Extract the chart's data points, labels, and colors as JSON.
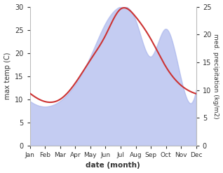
{
  "months": [
    "Jan",
    "Feb",
    "Mar",
    "Apr",
    "May",
    "Jun",
    "Jul",
    "Aug",
    "Sep",
    "Oct",
    "Nov",
    "Dec"
  ],
  "month_positions": [
    0,
    1,
    2,
    3,
    4,
    5,
    6,
    7,
    8,
    9,
    10,
    11
  ],
  "temp_max": [
    11.3,
    9.5,
    10.0,
    13.5,
    18.5,
    23.8,
    29.5,
    27.8,
    23.0,
    17.0,
    13.0,
    11.2
  ],
  "precip": [
    8.0,
    7.0,
    8.0,
    11.0,
    16.0,
    22.0,
    25.0,
    22.5,
    16.0,
    21.0,
    12.0,
    10.0
  ],
  "temp_ylim": [
    0,
    30
  ],
  "precip_ylim": [
    0,
    25
  ],
  "temp_color": "#cc3333",
  "fill_color": "#b0bbee",
  "fill_alpha": 0.75,
  "ylabel_left": "max temp (C)",
  "ylabel_right": "med. precipitation (kg/m2)",
  "xlabel": "date (month)",
  "bg_color": "#ffffff",
  "line_width": 1.5
}
